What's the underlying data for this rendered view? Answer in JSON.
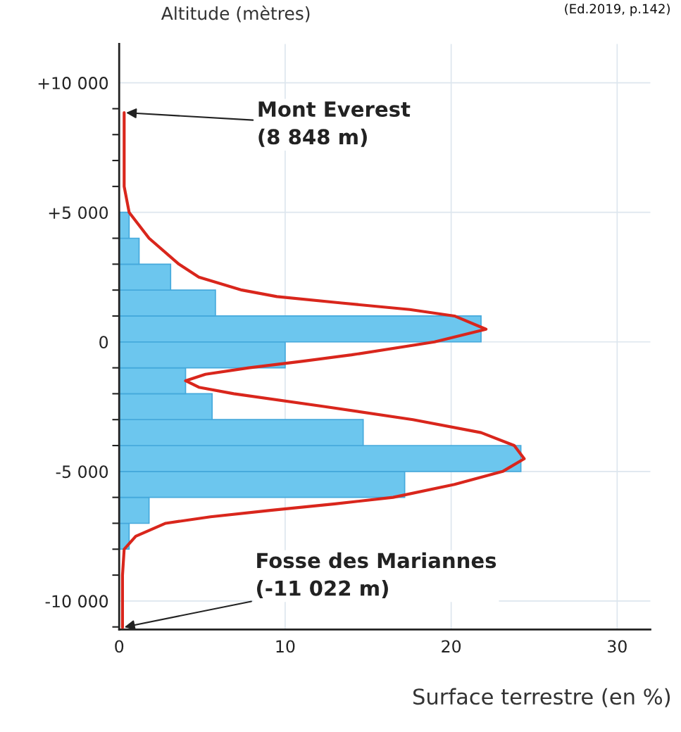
{
  "chart_data": {
    "type": "histogram",
    "orientation": "horizontal",
    "ylabel": "Altitude (mètres)",
    "xlabel": "Surface terrestre (en %)",
    "bins": [
      -8000,
      -7000,
      -6000,
      -5000,
      -4000,
      -3000,
      -2000,
      -1000,
      0,
      1000,
      2000,
      3000,
      4000,
      5000
    ],
    "values": [
      0.6,
      1.8,
      17.2,
      24.2,
      14.7,
      5.6,
      4.0,
      10.0,
      21.8,
      5.8,
      3.1,
      1.2,
      0.6
    ],
    "color": "#6cc6ee",
    "series": [
      {
        "type": "line",
        "color": "#d9261c",
        "x": [
          8848,
          7000,
          6000,
          5000,
          4000,
          3000,
          2500,
          2000,
          1750,
          1500,
          1250,
          1000,
          490,
          0,
          -500,
          -750,
          -1000,
          -1250,
          -1500,
          -1750,
          -2000,
          -2500,
          -3000,
          -3500,
          -4000,
          -4510,
          -5000,
          -5500,
          -6000,
          -6250,
          -6500,
          -6750,
          -7000,
          -7500,
          -8000,
          -9000,
          -11022
        ],
        "values": [
          0.3,
          0.3,
          0.3,
          0.6,
          1.8,
          3.6,
          4.8,
          7.4,
          9.5,
          13.4,
          17.5,
          20.2,
          22.1,
          19.0,
          14.0,
          11.0,
          7.8,
          5.2,
          4.0,
          4.8,
          6.9,
          12.4,
          17.7,
          21.8,
          23.8,
          24.4,
          23.1,
          20.2,
          16.5,
          13.0,
          9.1,
          5.5,
          2.8,
          1.0,
          0.3,
          0.2,
          0.2
        ]
      }
    ],
    "xlim": [
      0,
      32
    ],
    "xticks": [
      0,
      10,
      20,
      30
    ],
    "ylim": [
      -11100,
      11500
    ],
    "yticks": [
      {
        "value": -11000,
        "label": null
      },
      {
        "value": -10000,
        "label": "-10 000"
      },
      {
        "value": -9000,
        "label": null
      },
      {
        "value": -8000,
        "label": null
      },
      {
        "value": -7000,
        "label": null
      },
      {
        "value": -6000,
        "label": null
      },
      {
        "value": -5000,
        "label": "-5 000"
      },
      {
        "value": -4000,
        "label": null
      },
      {
        "value": -3000,
        "label": null
      },
      {
        "value": -2000,
        "label": null
      },
      {
        "value": -1000,
        "label": null
      },
      0,
      {
        "value": 1000,
        "label": null
      },
      {
        "value": 2000,
        "label": null
      },
      {
        "value": 3000,
        "label": null
      },
      {
        "value": 4000,
        "label": null
      },
      {
        "value": 5000,
        "label": "+5 000"
      },
      {
        "value": 6000,
        "label": null
      },
      {
        "value": 7000,
        "label": null
      },
      {
        "value": 8000,
        "label": null
      },
      {
        "value": 9000,
        "label": null
      },
      {
        "value": 10000,
        "label": "+10 000"
      }
    ],
    "grid": true,
    "annotations": [
      {
        "text": "Mont Everest\n(8 848 m)",
        "x": 0.3,
        "y": 8848
      },
      {
        "text": "Fosse des Mariannes\n(-11 022 m)",
        "x": 0.2,
        "y": -11022
      },
      "(Ed.2019, p.142)"
    ]
  }
}
